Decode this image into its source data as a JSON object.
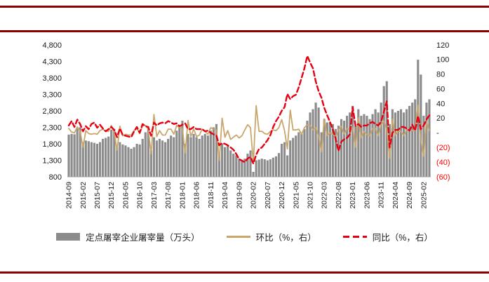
{
  "frame": {
    "accent_color": "#8B0000"
  },
  "chart_data": {
    "type": "bar",
    "title": "",
    "xlabel": "",
    "ylabel_left": "",
    "ylabel_right": "",
    "grid": false,
    "legend_position": "bottom",
    "x": [
      "2014-09",
      "2014-10",
      "2014-11",
      "2014-12",
      "2015-01",
      "2015-02",
      "2015-03",
      "2015-04",
      "2015-05",
      "2015-06",
      "2015-07",
      "2015-08",
      "2015-09",
      "2015-10",
      "2015-11",
      "2015-12",
      "2016-01",
      "2016-02",
      "2016-03",
      "2016-04",
      "2016-05",
      "2016-06",
      "2016-07",
      "2016-08",
      "2016-09",
      "2016-10",
      "2016-11",
      "2016-12",
      "2017-01",
      "2017-02",
      "2017-03",
      "2017-04",
      "2017-05",
      "2017-06",
      "2017-07",
      "2017-08",
      "2017-09",
      "2017-10",
      "2017-11",
      "2017-12",
      "2018-01",
      "2018-02",
      "2018-03",
      "2018-04",
      "2018-05",
      "2018-06",
      "2018-07",
      "2018-08",
      "2018-09",
      "2018-10",
      "2018-11",
      "2018-12",
      "2019-01",
      "2019-02",
      "2019-03",
      "2019-04",
      "2019-05",
      "2019-06",
      "2019-07",
      "2019-08",
      "2019-09",
      "2019-10",
      "2019-11",
      "2019-12",
      "2020-01",
      "2020-02",
      "2020-03",
      "2020-04",
      "2020-05",
      "2020-06",
      "2020-07",
      "2020-08",
      "2020-09",
      "2020-10",
      "2020-11",
      "2020-12",
      "2021-01",
      "2021-02",
      "2021-03",
      "2021-04",
      "2021-05",
      "2021-06",
      "2021-07",
      "2021-08",
      "2021-09",
      "2021-10",
      "2021-11",
      "2021-12",
      "2022-01",
      "2022-02",
      "2022-03",
      "2022-04",
      "2022-05",
      "2022-06",
      "2022-07",
      "2022-08",
      "2022-09",
      "2022-10",
      "2022-11",
      "2022-12",
      "2023-01",
      "2023-02",
      "2023-03",
      "2023-04",
      "2023-05",
      "2023-06",
      "2023-07",
      "2023-08",
      "2023-09",
      "2023-10",
      "2023-11",
      "2023-12",
      "2024-01",
      "2024-02",
      "2024-03",
      "2024-04",
      "2024-05",
      "2024-06",
      "2024-07",
      "2024-08",
      "2024-09",
      "2024-10",
      "2024-11",
      "2024-12",
      "2025-01",
      "2025-02",
      "2025-03",
      "2025-04"
    ],
    "x_tick_labels": [
      "2014-09",
      "2015-02",
      "2015-07",
      "2015-12",
      "2016-05",
      "2016-10",
      "2017-03",
      "2017-08",
      "2018-01",
      "2018-06",
      "2018-11",
      "2019-04",
      "2019-09",
      "2020-02",
      "2020-07",
      "2020-12",
      "2021-05",
      "2021-10",
      "2022-03",
      "2022-08",
      "2023-01",
      "2023-06",
      "2023-11",
      "2024-04",
      "2024-09",
      "2025-02"
    ],
    "series": [
      {
        "name": "定点屠宰企业屠宰量（万头）",
        "type": "bar",
        "axis": "left",
        "color": "#8C8C8C",
        "values": [
          2080,
          2100,
          2090,
          2260,
          2300,
          1850,
          1900,
          1880,
          1850,
          1830,
          1800,
          1850,
          1950,
          1980,
          2020,
          2230,
          2250,
          1700,
          1850,
          1780,
          1750,
          1700,
          1650,
          1700,
          1800,
          1780,
          1950,
          2150,
          2250,
          1600,
          2000,
          1900,
          1950,
          1900,
          1850,
          1950,
          2050,
          2000,
          2200,
          2350,
          2500,
          1800,
          2100,
          2000,
          2100,
          2000,
          1950,
          2050,
          2100,
          2050,
          2200,
          2300,
          2400,
          1500,
          1800,
          1700,
          1750,
          1600,
          1500,
          1450,
          1350,
          1300,
          1350,
          1500,
          1600,
          950,
          1300,
          1320,
          1350,
          1330,
          1300,
          1330,
          1380,
          1420,
          1520,
          1800,
          1850,
          1450,
          1900,
          1980,
          2050,
          2150,
          2100,
          2250,
          2500,
          2750,
          2850,
          3050,
          2900,
          2150,
          2550,
          2450,
          2450,
          2400,
          2250,
          2350,
          2550,
          2500,
          2650,
          2750,
          2950,
          2350,
          2850,
          2650,
          2700,
          2650,
          2550,
          2700,
          2850,
          2750,
          3050,
          3550,
          3700,
          2400,
          2850,
          2750,
          2800,
          2850,
          2750,
          2850,
          2950,
          3050,
          3150,
          4350,
          3900,
          2650,
          3050,
          3150
        ]
      },
      {
        "name": "环比（%，右）",
        "type": "line",
        "dash": false,
        "axis": "right",
        "color": "#C9A66B",
        "values": [
          6,
          1,
          0,
          8,
          2,
          -20,
          3,
          -1,
          -2,
          -1,
          -2,
          3,
          5,
          2,
          2,
          10,
          1,
          -24,
          9,
          -4,
          -2,
          -3,
          -3,
          3,
          6,
          -1,
          10,
          10,
          5,
          -29,
          25,
          -5,
          3,
          -3,
          -3,
          5,
          5,
          -2,
          10,
          7,
          6,
          -28,
          17,
          -5,
          5,
          -5,
          -3,
          5,
          2,
          -2,
          7,
          5,
          4,
          -38,
          20,
          -6,
          3,
          -9,
          -6,
          -3,
          -7,
          -4,
          4,
          11,
          7,
          -41,
          37,
          2,
          2,
          -1,
          -2,
          2,
          4,
          3,
          7,
          18,
          3,
          -22,
          31,
          4,
          4,
          5,
          -2,
          7,
          11,
          10,
          4,
          7,
          -5,
          -26,
          19,
          -4,
          0,
          -2,
          -6,
          4,
          9,
          -2,
          6,
          4,
          7,
          -20,
          21,
          -7,
          2,
          -2,
          -4,
          6,
          6,
          -4,
          11,
          16,
          4,
          -35,
          19,
          -4,
          2,
          2,
          -4,
          4,
          4,
          3,
          3,
          38,
          -10,
          -32,
          15,
          3
        ]
      },
      {
        "name": "同比（%，右）",
        "type": "line",
        "dash": true,
        "axis": "right",
        "color": "#E60012",
        "values": [
          10,
          16,
          8,
          18,
          12,
          2,
          9,
          5,
          12,
          14,
          7,
          11,
          6,
          2,
          5,
          8,
          4,
          -6,
          6,
          -3,
          -4,
          -5,
          -6,
          2,
          8,
          0,
          12,
          9,
          8,
          -4,
          14,
          10,
          13,
          14,
          13,
          16,
          14,
          12,
          13,
          9,
          11,
          13,
          5,
          5,
          8,
          5,
          5,
          5,
          2,
          3,
          0,
          -2,
          -4,
          -17,
          -14,
          -15,
          -17,
          -20,
          -23,
          -29,
          -36,
          -38,
          -40,
          -35,
          -33,
          -42,
          -30,
          -22,
          -20,
          -15,
          -10,
          -3,
          8,
          16,
          22,
          30,
          35,
          53,
          46,
          50,
          52,
          62,
          75,
          88,
          105,
          96,
          88,
          70,
          57,
          48,
          34,
          24,
          15,
          5,
          -8,
          -25,
          -12,
          -9,
          -7,
          -2,
          35,
          9,
          12,
          8,
          10,
          10,
          13,
          15,
          12,
          10,
          15,
          29,
          43,
          -20,
          0,
          4,
          4,
          8,
          8,
          6,
          3,
          11,
          3,
          23,
          5,
          10,
          18,
          24
        ]
      }
    ],
    "left_axis": {
      "min": 800,
      "max": 4800,
      "step": 500,
      "tick_values": [
        4800,
        4300,
        3800,
        3300,
        2800,
        2300,
        1800,
        1300,
        800
      ],
      "tick_labels": [
        "4,800",
        "4,300",
        "3,800",
        "3,300",
        "2,800",
        "2,300",
        "1,800",
        "1,300",
        "800"
      ],
      "label_color": "#1a1a1a"
    },
    "right_axis": {
      "min": -60,
      "max": 120,
      "step": 20,
      "tick_values": [
        120,
        100,
        80,
        60,
        40,
        20,
        0,
        -20,
        -40,
        -60
      ],
      "tick_labels": [
        "120",
        "100",
        "80",
        "60",
        "40",
        "20",
        "-",
        "(20)",
        "(40)",
        "(60)"
      ],
      "label_color": "#1a1a1a",
      "negative_color": "#FF0000"
    }
  },
  "legend": {
    "items": [
      {
        "label": "定点屠宰企业屠宰量（万头）",
        "swatch": "gray-bar"
      },
      {
        "label": "环比（%，右）",
        "swatch": "tan-line"
      },
      {
        "label": "同比（%，右）",
        "swatch": "red-dashed-line"
      }
    ]
  }
}
